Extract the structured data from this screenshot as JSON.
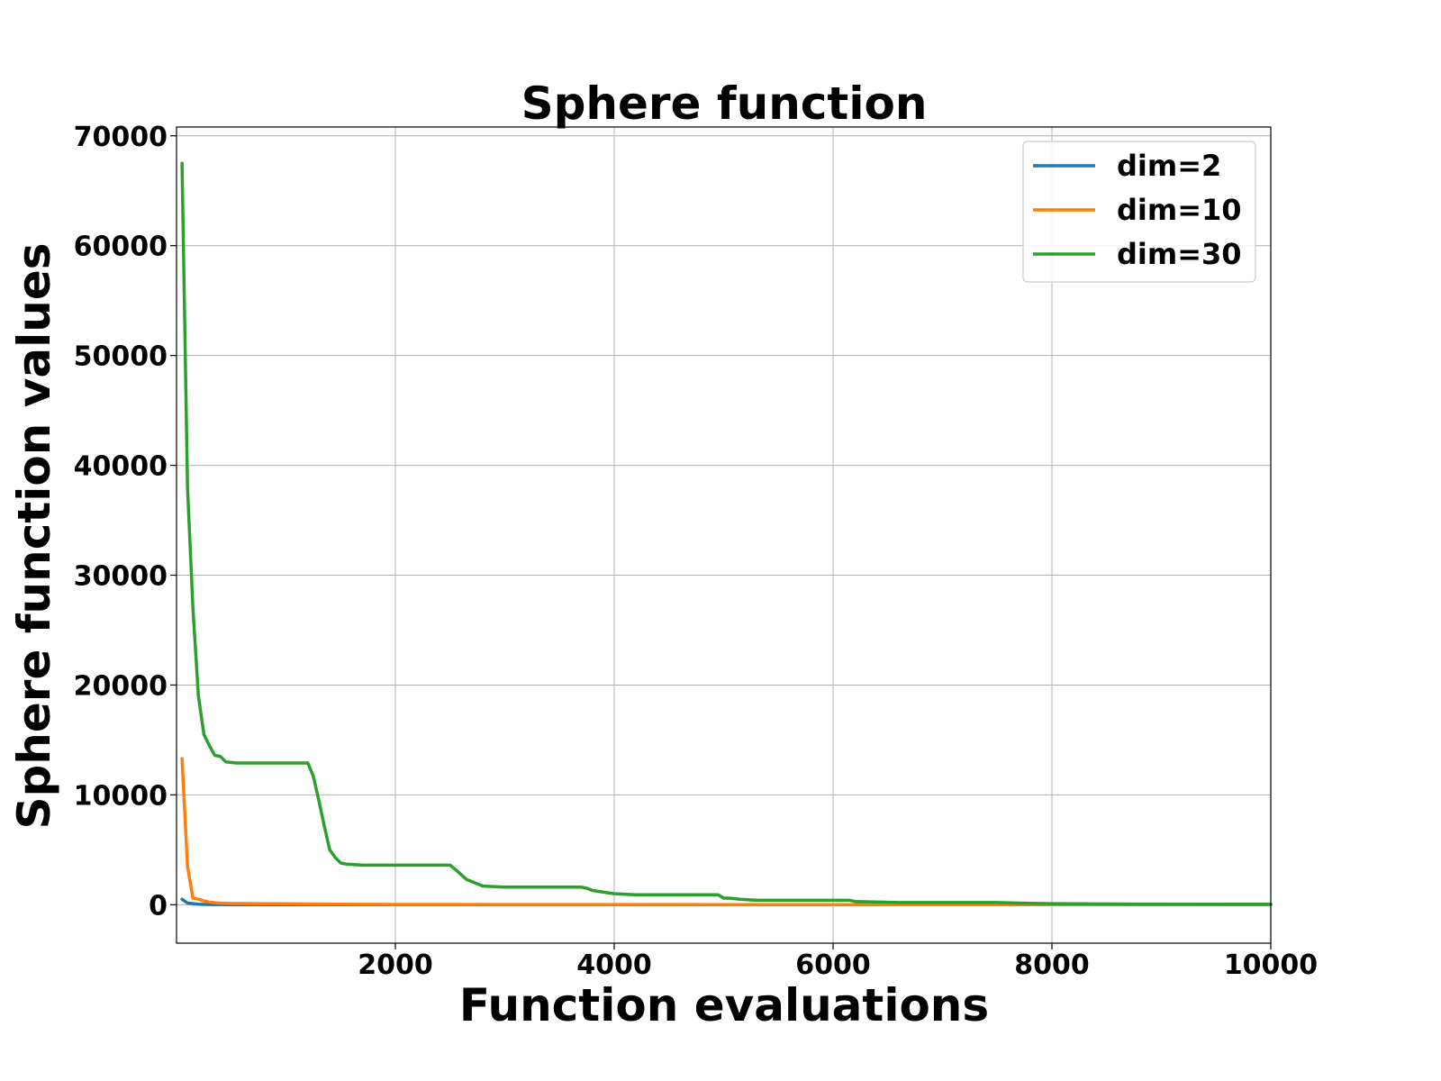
{
  "chart_data": {
    "type": "line",
    "title": "Sphere function",
    "xlabel": "Function evaluations",
    "ylabel": "Sphere function values",
    "xlim": [
      0,
      10000
    ],
    "ylim": [
      -3500,
      70800
    ],
    "xticks": [
      2000,
      4000,
      6000,
      8000,
      10000
    ],
    "xtick_labels": [
      "2000",
      "4000",
      "6000",
      "8000",
      "10000"
    ],
    "yticks": [
      0,
      10000,
      20000,
      30000,
      40000,
      50000,
      60000,
      70000
    ],
    "ytick_labels": [
      "0",
      "10000",
      "20000",
      "30000",
      "40000",
      "50000",
      "60000",
      "70000"
    ],
    "grid": true,
    "legend_position": "top-right",
    "series": [
      {
        "name": "dim=2",
        "color": "#1f77b4",
        "x": [
          50,
          100,
          200,
          300,
          500,
          1000,
          2000,
          5000,
          10000
        ],
        "y": [
          500,
          150,
          50,
          20,
          5,
          1,
          0.1,
          0,
          0
        ]
      },
      {
        "name": "dim=10",
        "color": "#ff7f0e",
        "x": [
          50,
          100,
          150,
          200,
          250,
          300,
          350,
          400,
          500,
          700,
          1000,
          1500,
          2000,
          3000,
          5000,
          7000,
          10000
        ],
        "y": [
          13300,
          3500,
          600,
          500,
          350,
          250,
          180,
          150,
          120,
          100,
          80,
          50,
          30,
          20,
          10,
          5,
          2
        ]
      },
      {
        "name": "dim=30",
        "color": "#2ca02c",
        "x": [
          50,
          100,
          150,
          200,
          250,
          300,
          350,
          400,
          450,
          550,
          700,
          1000,
          1200,
          1250,
          1300,
          1350,
          1400,
          1450,
          1500,
          1550,
          1700,
          1900,
          2500,
          2550,
          2650,
          2800,
          3000,
          3700,
          3750,
          3800,
          4000,
          4200,
          4950,
          5000,
          5050,
          5150,
          5300,
          6150,
          6200,
          6600,
          7500,
          7700,
          8000,
          8800,
          10000
        ],
        "y": [
          67500,
          38000,
          27000,
          19000,
          15500,
          14500,
          13600,
          13500,
          13000,
          12900,
          12900,
          12900,
          12900,
          11700,
          9500,
          7200,
          5000,
          4300,
          3800,
          3700,
          3600,
          3600,
          3600,
          3200,
          2300,
          1700,
          1600,
          1600,
          1500,
          1300,
          1000,
          900,
          900,
          600,
          600,
          500,
          400,
          400,
          300,
          200,
          200,
          150,
          100,
          60,
          40
        ]
      }
    ]
  }
}
